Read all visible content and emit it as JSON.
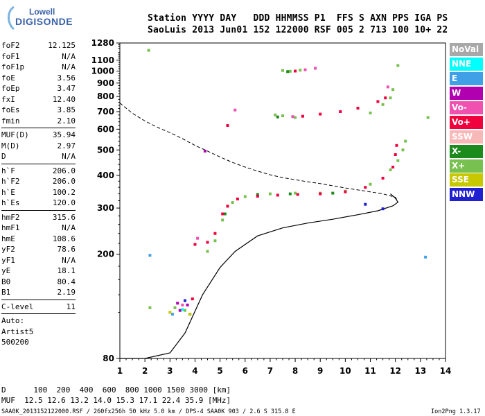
{
  "logo": {
    "line1": "Lowell",
    "line2": "DIGISONDE"
  },
  "header": {
    "line1": "Station YYYY DAY   DDD HHMMSS P1  FFS S AXN PPS IGA PS",
    "line2": "SaoLuis 2013 Jun01 152 122000 RSF 005 2 713 100 10+ 22"
  },
  "params": {
    "g1": [
      {
        "label": "foF2",
        "value": "12.125"
      },
      {
        "label": "foF1",
        "value": "N/A"
      },
      {
        "label": "foF1p",
        "value": "N/A"
      },
      {
        "label": "foE",
        "value": "3.56"
      },
      {
        "label": "foEp",
        "value": "3.47"
      },
      {
        "label": "fxI",
        "value": "12.40"
      },
      {
        "label": "foEs",
        "value": "3.85"
      },
      {
        "label": "fmin",
        "value": "2.10"
      }
    ],
    "g2": [
      {
        "label": "MUF(D)",
        "value": "35.94"
      },
      {
        "label": "M(D)",
        "value": "2.97"
      },
      {
        "label": "D",
        "value": "N/A"
      }
    ],
    "g3": [
      {
        "label": "h`F",
        "value": "206.0"
      },
      {
        "label": "h`F2",
        "value": "206.0"
      },
      {
        "label": "h`E",
        "value": "100.2"
      },
      {
        "label": "h`Es",
        "value": "120.0"
      }
    ],
    "g4": [
      {
        "label": "hmF2",
        "value": "315.6"
      },
      {
        "label": "hmF1",
        "value": "N/A"
      },
      {
        "label": "hmE",
        "value": "108.6"
      },
      {
        "label": "yF2",
        "value": "78.6"
      },
      {
        "label": "yF1",
        "value": "N/A"
      },
      {
        "label": "yE",
        "value": "18.1"
      },
      {
        "label": "B0",
        "value": "80.4"
      },
      {
        "label": "B1",
        "value": "2.19"
      }
    ],
    "g5": [
      {
        "label": "C-level",
        "value": "11"
      }
    ],
    "auto": {
      "l1": "Auto:",
      "l2": "Artist5",
      "l3": "500200"
    }
  },
  "legend": [
    {
      "label": "NoVal",
      "color": "#a8a8a8",
      "text": "#ffffff"
    },
    {
      "label": "NNE",
      "color": "#00ffff",
      "text": "#ffffff"
    },
    {
      "label": "E",
      "color": "#3fa0e8",
      "text": "#ffffff"
    },
    {
      "label": "W",
      "color": "#b000b0",
      "text": "#ffffff"
    },
    {
      "label": "Vo-",
      "color": "#f050b0",
      "text": "#ffffff"
    },
    {
      "label": "Vo+",
      "color": "#f0003c",
      "text": "#ffffff"
    },
    {
      "label": "SSW",
      "color": "#f8b8b8",
      "text": "#ffffff"
    },
    {
      "label": "X-",
      "color": "#1c8a1c",
      "text": "#ffffff"
    },
    {
      "label": "X+",
      "color": "#78c050",
      "text": "#ffffff"
    },
    {
      "label": "SSE",
      "color": "#c8c800",
      "text": "#ffffff"
    },
    {
      "label": "NNW",
      "color": "#2020d0",
      "text": "#ffffff"
    }
  ],
  "footer": {
    "line1": "D      100  200  400  600  800 1000 1500 3000 [km]",
    "line2": "MUF  12.5 12.6 13.2 14.0 15.3 17.1 22.4 35.9 [MHz]",
    "line3": "SAA0K_2013152122000.RSF / 260fx256h 50 kHz 5.0 km / DPS-4 SAA0K 903 / 2.6 S 315.8 E",
    "version": "Ion2Png 1.3.17"
  },
  "chart_data": {
    "type": "scatter",
    "xlim": [
      1,
      14
    ],
    "ylim": [
      80,
      1280
    ],
    "x_ticks": [
      "1",
      "2",
      "3",
      "4",
      "5",
      "6",
      "7",
      "8",
      "9",
      "10",
      "11",
      "12",
      "13",
      "14"
    ],
    "y_ticks": [
      "80",
      "200",
      "300",
      "400",
      "500",
      "600",
      "700",
      "800",
      "900",
      "1000",
      "1100",
      "1280"
    ],
    "y_scale": "log",
    "series": [
      {
        "name": "X+",
        "color": "#78c050",
        "points": [
          [
            2.15,
            1200
          ],
          [
            3.6,
            122
          ],
          [
            4.5,
            205
          ],
          [
            4.8,
            225
          ],
          [
            5.1,
            270
          ],
          [
            5.5,
            315
          ],
          [
            6,
            332
          ],
          [
            7,
            340
          ],
          [
            8,
            342
          ],
          [
            9,
            342
          ],
          [
            10,
            348
          ],
          [
            11,
            370
          ],
          [
            11.8,
            420
          ],
          [
            12.1,
            455
          ],
          [
            12.3,
            500
          ],
          [
            12.4,
            540
          ],
          [
            11.0,
            692
          ],
          [
            11.5,
            745
          ],
          [
            11.8,
            790
          ],
          [
            11.9,
            850
          ],
          [
            7.2,
            680
          ],
          [
            7.5,
            675
          ],
          [
            8,
            665
          ],
          [
            7.5,
            1005
          ],
          [
            7.8,
            998
          ],
          [
            8.2,
            1008
          ],
          [
            12.1,
            1050
          ],
          [
            13.3,
            665
          ],
          [
            2.2,
            125
          ],
          [
            3.2,
            125
          ]
        ]
      },
      {
        "name": "X-",
        "color": "#1c8a1c",
        "points": [
          [
            6.5,
            338
          ],
          [
            7.8,
            340
          ],
          [
            9.5,
            342
          ],
          [
            7.7,
            995
          ],
          [
            7.3,
            668
          ],
          [
            3.8,
            118
          ],
          [
            5.2,
            285
          ]
        ]
      },
      {
        "name": "Vo+",
        "color": "#f0003c",
        "points": [
          [
            4.0,
            218
          ],
          [
            4.5,
            222
          ],
          [
            4.8,
            240
          ],
          [
            5.1,
            285
          ],
          [
            5.3,
            305
          ],
          [
            5.7,
            325
          ],
          [
            6.5,
            333
          ],
          [
            7.3,
            336
          ],
          [
            8.1,
            338
          ],
          [
            9,
            340
          ],
          [
            10,
            346
          ],
          [
            10.8,
            360
          ],
          [
            11.5,
            390
          ],
          [
            11.9,
            430
          ],
          [
            12.0,
            480
          ],
          [
            12.05,
            520
          ],
          [
            8.3,
            672
          ],
          [
            9,
            685
          ],
          [
            9.8,
            700
          ],
          [
            10.5,
            722
          ],
          [
            11.3,
            765
          ],
          [
            11.6,
            790
          ],
          [
            8.0,
            1000
          ],
          [
            5.3,
            620
          ],
          [
            3.9,
            135
          ]
        ]
      },
      {
        "name": "Vo-",
        "color": "#f050b0",
        "points": [
          [
            3.5,
            128
          ],
          [
            4.1,
            230
          ],
          [
            7.9,
            670
          ],
          [
            8.4,
            1012
          ],
          [
            8.8,
            1025
          ],
          [
            5.6,
            710
          ],
          [
            11.7,
            870
          ]
        ]
      },
      {
        "name": "W",
        "color": "#b000b0",
        "points": [
          [
            3.3,
            130
          ],
          [
            3.7,
            128
          ],
          [
            4.4,
            495
          ],
          [
            3.4,
            122
          ]
        ]
      },
      {
        "name": "E",
        "color": "#3fa0e8",
        "points": [
          [
            2.2,
            198
          ],
          [
            13.2,
            195
          ],
          [
            3.1,
            118
          ]
        ]
      },
      {
        "name": "NNW",
        "color": "#2020d0",
        "points": [
          [
            3.6,
            133
          ],
          [
            11.5,
            298
          ],
          [
            10.8,
            310
          ]
        ]
      },
      {
        "name": "SSE",
        "color": "#c8c800",
        "points": [
          [
            3.0,
            120
          ],
          [
            3.8,
            118
          ]
        ]
      },
      {
        "name": "NNE",
        "color": "#00ffff",
        "points": [
          [
            3.5,
            123
          ]
        ]
      }
    ],
    "profile_line": [
      [
        1,
        80
      ],
      [
        2,
        80
      ],
      [
        3,
        84
      ],
      [
        3.6,
        100
      ],
      [
        4.3,
        140
      ],
      [
        5,
        178
      ],
      [
        5.6,
        205
      ],
      [
        6.5,
        235
      ],
      [
        7.5,
        252
      ],
      [
        8.5,
        263
      ],
      [
        9.5,
        272
      ],
      [
        10.5,
        283
      ],
      [
        11.3,
        293
      ],
      [
        11.9,
        306
      ],
      [
        12.1,
        316
      ],
      [
        12.0,
        327
      ],
      [
        11.8,
        340
      ]
    ],
    "dashed_line": [
      [
        1,
        755
      ],
      [
        1.5,
        690
      ],
      [
        2,
        645
      ],
      [
        2.5,
        610
      ],
      [
        3,
        582
      ],
      [
        3.5,
        552
      ],
      [
        4,
        520
      ],
      [
        4.5,
        495
      ],
      [
        5,
        470
      ],
      [
        5.5,
        448
      ],
      [
        6,
        430
      ],
      [
        6.5,
        415
      ],
      [
        7,
        402
      ],
      [
        7.5,
        392
      ],
      [
        8,
        385
      ],
      [
        8.5,
        378
      ],
      [
        9,
        372
      ],
      [
        9.5,
        365
      ],
      [
        10,
        358
      ],
      [
        10.5,
        352
      ],
      [
        11,
        346
      ],
      [
        11.5,
        340
      ],
      [
        12,
        330
      ],
      [
        12.1,
        318
      ]
    ]
  }
}
